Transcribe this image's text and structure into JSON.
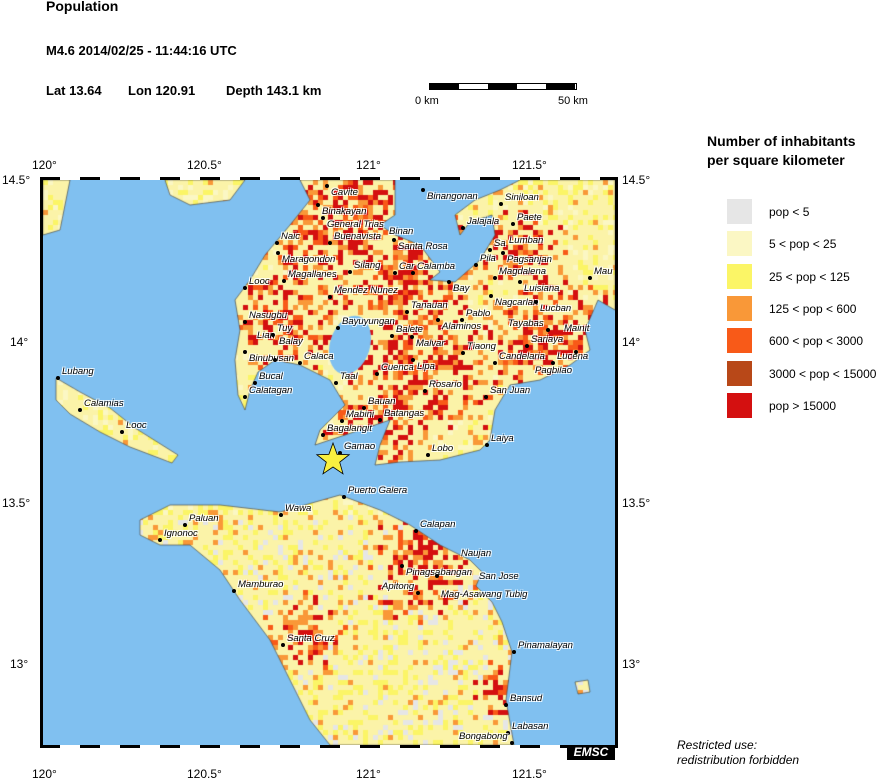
{
  "header": {
    "title": "Population",
    "event": "M4.6  2014/02/25 - 11:44:16 UTC",
    "lat": "Lat 13.64",
    "lon": "Lon 120.91",
    "depth": "Depth 143.1 km"
  },
  "scale_bar": {
    "start_label": "0 km",
    "end_label": "50 km"
  },
  "map": {
    "lon_ticks": [
      "120°",
      "120.5°",
      "121°",
      "121.5°"
    ],
    "lat_ticks": [
      "14.5°",
      "14°",
      "13.5°",
      "13°"
    ],
    "epicenter": {
      "lat": 13.64,
      "lon": 120.91,
      "marker": "star-icon",
      "color": "#f8f040"
    },
    "water_color": "#80c0f0",
    "cities": [
      "Cavite",
      "Binakayan",
      "General Trias",
      "Naic",
      "Maragondon",
      "Buenavista",
      "Binan",
      "Santa Rosa",
      "Silang",
      "Car",
      "Calamba",
      "Magallanes",
      "Looc",
      "Mendez Nunez",
      "Nasugbu",
      "Lian",
      "Tuy",
      "Bayuyungan",
      "Tanauan",
      "Alaminos",
      "Pablo",
      "Balete",
      "Malvar",
      "Binangonan",
      "Jalajala",
      "Siniloan",
      "Paete",
      "Lumban",
      "Sa",
      "Pagsanjan",
      "Pila",
      "Bay",
      "Magdalena",
      "Luisiana",
      "Nagcarlan",
      "Lucban",
      "Mau",
      "Mainit",
      "Tayabas",
      "Binubusan",
      "Balay",
      "Calaca",
      "Lipa",
      "Tiaong",
      "Sariaya",
      "Candelaria",
      "Lucena",
      "Pagbilao",
      "Cuenca",
      "Taal",
      "Bucal",
      "Calatagan",
      "Rosario",
      "San Juan",
      "Bauan",
      "Mabini",
      "Batangas",
      "Bagalangit",
      "Gamao",
      "Lobo",
      "Laiya",
      "Lubang",
      "Calamias",
      "Looc",
      "Puerto Galera",
      "Wawa",
      "Paluan",
      "Ignonoc",
      "Calapan",
      "Naujan",
      "San Jose",
      "Pinagsabangan",
      "Mag-Asawang Tubig",
      "Apitong",
      "Mamburao",
      "Santa Cruz",
      "Pinamalayan",
      "Bansud",
      "Labasan",
      "Bongabong"
    ],
    "credit": "EMSC"
  },
  "legend": {
    "title_line1": "Number of inhabitants",
    "title_line2": "per square kilometer",
    "items": [
      {
        "label": "pop < 5",
        "color": "#e6e6e6"
      },
      {
        "label": "5 < pop < 25",
        "color": "#fbf7c4"
      },
      {
        "label": "25 < pop < 125",
        "color": "#fbf566"
      },
      {
        "label": "125 < pop < 600",
        "color": "#f99838"
      },
      {
        "label": "600 < pop < 3000",
        "color": "#f85a18"
      },
      {
        "label": "3000 < pop < 15000",
        "color": "#b84818"
      },
      {
        "label": "pop > 15000",
        "color": "#d41010"
      }
    ]
  },
  "footer": {
    "line1": "Restricted use:",
    "line2": "redistribution forbidden"
  }
}
